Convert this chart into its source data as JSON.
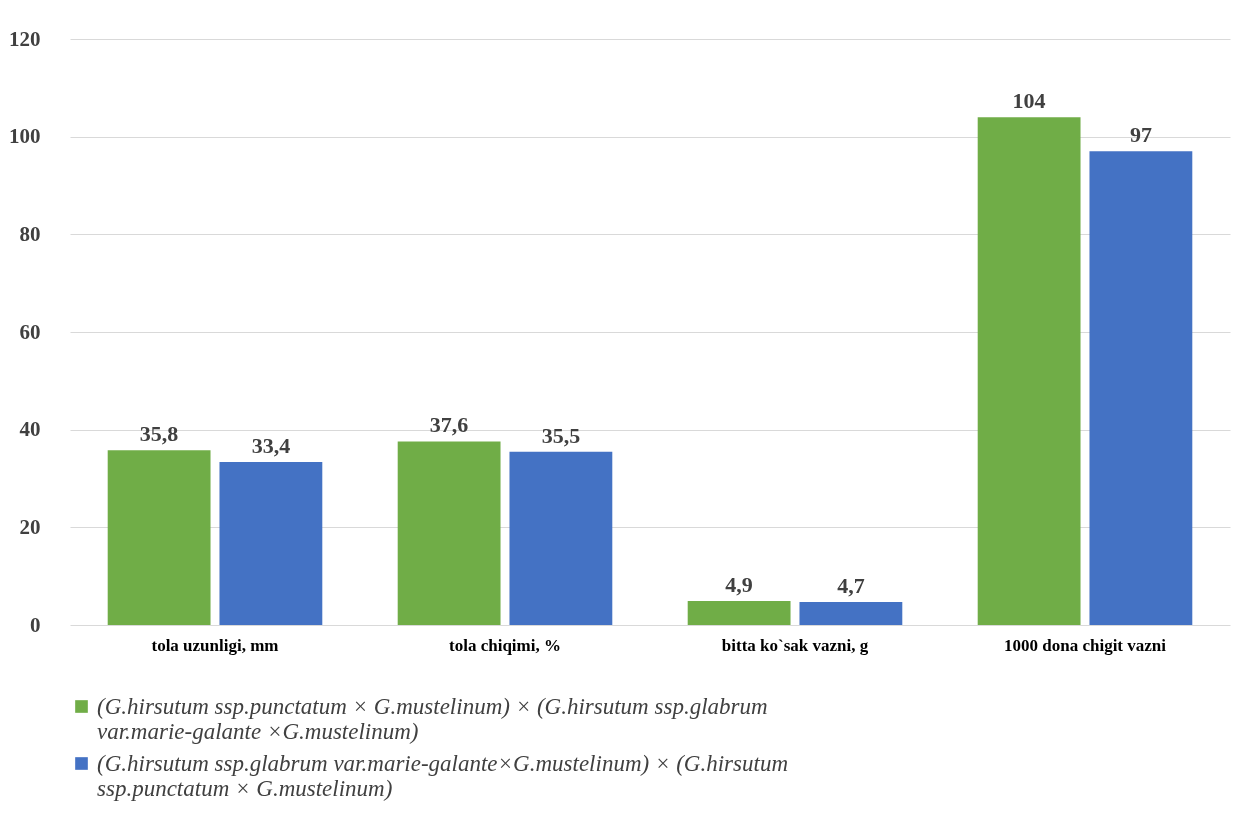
{
  "chart_data": {
    "type": "bar",
    "categories": [
      "tola uzunligi, mm",
      "tola chiqimi, %",
      "bitta ko`sak vazni, g",
      "1000 dona chigit vazni"
    ],
    "series": [
      {
        "name": "(G.hirsutum ssp.punctatum × G.mustelinum) × (G.hirsutum ssp.glabrum var.marie-galante ×G.mustelinum)",
        "color": "#70ad47",
        "values": [
          35.8,
          37.6,
          4.9,
          104
        ],
        "value_labels": [
          "35,8",
          "37,6",
          "4,9",
          "104"
        ]
      },
      {
        "name": "(G.hirsutum ssp.glabrum var.marie-galante×G.mustelinum) × (G.hirsutum ssp.punctatum × G.mustelinum)",
        "color": "#4472c4",
        "values": [
          33.4,
          35.5,
          4.7,
          97
        ],
        "value_labels": [
          "33,4",
          "35,5",
          "4,7",
          "97"
        ]
      }
    ],
    "ylim": [
      0,
      120
    ],
    "yticks": [
      0,
      20,
      40,
      60,
      80,
      100,
      120
    ],
    "grid": "y",
    "legend": "bottom"
  }
}
